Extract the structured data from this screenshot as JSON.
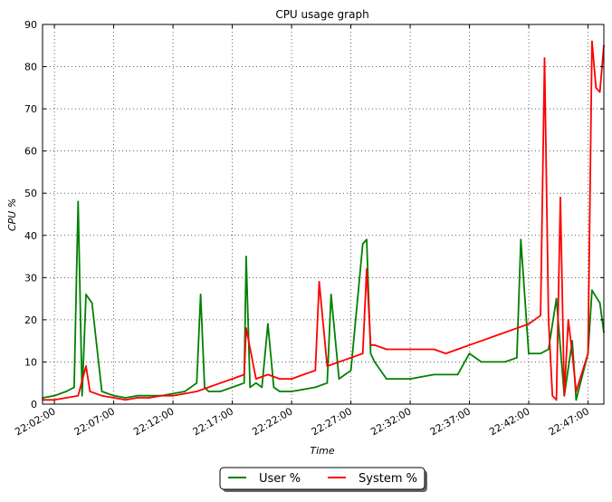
{
  "chart_data": {
    "type": "line",
    "title": "CPU usage graph",
    "xlabel": "Time",
    "ylabel": "CPU %",
    "ylim": [
      0,
      90
    ],
    "xlim": [
      "22:01:00",
      "22:48:20"
    ],
    "y_ticks": [
      0,
      10,
      20,
      30,
      40,
      50,
      60,
      70,
      80,
      90
    ],
    "x_ticks": [
      "22:02:00",
      "22:07:00",
      "22:12:00",
      "22:17:00",
      "22:22:00",
      "22:27:00",
      "22:32:00",
      "22:37:00",
      "22:42:00",
      "22:47:00"
    ],
    "grid": true,
    "legend_placement": "bottom-center",
    "colors": {
      "user": "#008000",
      "system": "#ff0000"
    },
    "series": [
      {
        "name": "User %",
        "color": "#008000",
        "x": [
          "22:01:00",
          "22:02:00",
          "22:03:00",
          "22:03:40",
          "22:04:00",
          "22:04:20",
          "22:04:40",
          "22:05:10",
          "22:06:00",
          "22:07:00",
          "22:08:00",
          "22:09:00",
          "22:10:00",
          "22:11:00",
          "22:12:00",
          "22:13:00",
          "22:14:00",
          "22:14:20",
          "22:14:40",
          "22:15:00",
          "22:16:00",
          "22:17:00",
          "22:18:00",
          "22:18:10",
          "22:18:30",
          "22:19:00",
          "22:19:30",
          "22:20:00",
          "22:20:30",
          "22:21:00",
          "22:22:00",
          "22:23:00",
          "22:24:00",
          "22:25:00",
          "22:25:20",
          "22:26:00",
          "22:27:00",
          "22:28:00",
          "22:28:20",
          "22:28:40",
          "22:29:00",
          "22:30:00",
          "22:31:00",
          "22:32:00",
          "22:33:00",
          "22:34:00",
          "22:35:00",
          "22:36:00",
          "22:37:00",
          "22:38:00",
          "22:39:00",
          "22:40:00",
          "22:41:00",
          "22:41:20",
          "22:42:00",
          "22:43:00",
          "22:43:40",
          "22:44:20",
          "22:45:00",
          "22:45:40",
          "22:46:00",
          "22:47:00",
          "22:47:20",
          "22:48:00",
          "22:48:20"
        ],
        "values": [
          1.5,
          2,
          3,
          4,
          48,
          2,
          26,
          24,
          3,
          2,
          1.5,
          2,
          2,
          2,
          2.5,
          3,
          5,
          26,
          4,
          3,
          3,
          4,
          5,
          35,
          4,
          5,
          4,
          19,
          4,
          3,
          3,
          3.5,
          4,
          5,
          26,
          6,
          8,
          38,
          39,
          12,
          10,
          6,
          6,
          6,
          6.5,
          7,
          7,
          7,
          12,
          10,
          10,
          10,
          11,
          39,
          12,
          12,
          13,
          25,
          2,
          15,
          1,
          12,
          27,
          24,
          17
        ]
      },
      {
        "name": "System %",
        "color": "#ff0000",
        "x": [
          "22:01:00",
          "22:02:00",
          "22:03:00",
          "22:04:00",
          "22:04:40",
          "22:05:00",
          "22:06:00",
          "22:07:00",
          "22:08:00",
          "22:09:00",
          "22:10:00",
          "22:11:00",
          "22:12:00",
          "22:13:00",
          "22:14:00",
          "22:15:00",
          "22:16:00",
          "22:17:00",
          "22:18:00",
          "22:18:10",
          "22:19:00",
          "22:20:00",
          "22:21:00",
          "22:22:00",
          "22:23:00",
          "22:24:00",
          "22:24:20",
          "22:25:00",
          "22:26:00",
          "22:27:00",
          "22:28:00",
          "22:28:20",
          "22:28:40",
          "22:29:00",
          "22:30:00",
          "22:31:00",
          "22:32:00",
          "22:33:00",
          "22:34:00",
          "22:35:00",
          "22:36:00",
          "22:37:00",
          "22:38:00",
          "22:39:00",
          "22:40:00",
          "22:41:00",
          "22:42:00",
          "22:43:00",
          "22:43:20",
          "22:43:40",
          "22:44:00",
          "22:44:20",
          "22:44:40",
          "22:45:00",
          "22:45:20",
          "22:45:40",
          "22:46:00",
          "22:47:00",
          "22:47:20",
          "22:47:40",
          "22:48:00",
          "22:48:20"
        ],
        "values": [
          1,
          1,
          1.5,
          2,
          9,
          3,
          2,
          1.5,
          1,
          1.5,
          1.5,
          2,
          2,
          2.5,
          3,
          4,
          5,
          6,
          7,
          18,
          6,
          7,
          6,
          6,
          7,
          8,
          29,
          9,
          10,
          11,
          12,
          32,
          14,
          14,
          13,
          13,
          13,
          13,
          13,
          12,
          13,
          14,
          15,
          16,
          17,
          18,
          19,
          21,
          82,
          20,
          2,
          1,
          49,
          2,
          20,
          12,
          3,
          12,
          86,
          75,
          74,
          85
        ]
      }
    ]
  }
}
